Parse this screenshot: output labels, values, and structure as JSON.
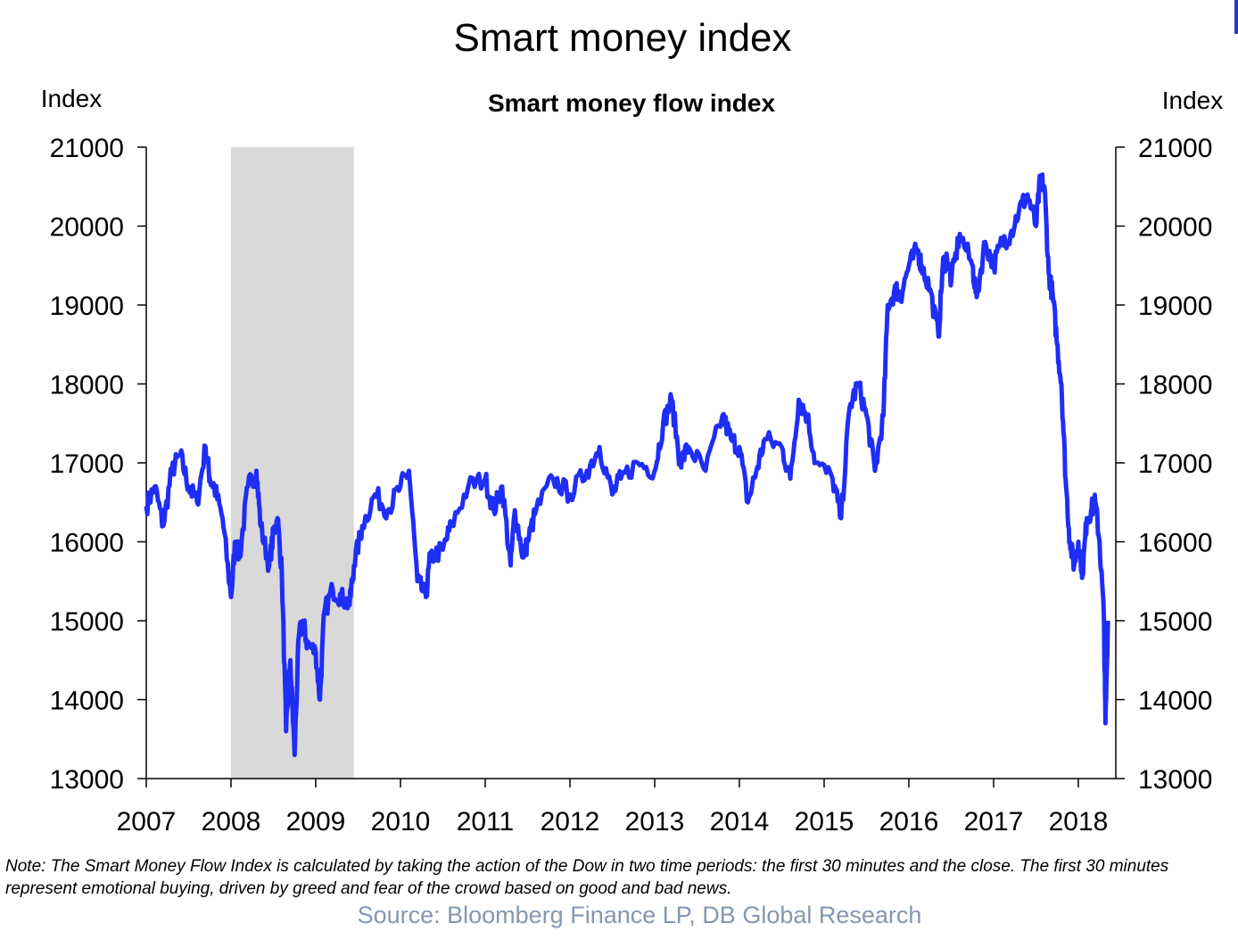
{
  "colors": {
    "line": "#1f2ef5",
    "recession": "#d9d9d9",
    "source": "#8497b0"
  },
  "note": {
    "line1": "Note: The Smart Money Flow Index is calculated by taking the action of the Dow in two time periods: the first 30 minutes and the close. The first 30 minutes",
    "line2": "represent emotional buying, driven by greed and fear of the crowd based on good and bad news."
  },
  "source": "Source: Bloomberg Finance LP, DB Global Research",
  "chart_data": {
    "type": "line",
    "title": "Smart money index",
    "subtitle": "Smart money flow index",
    "ylabel_left": "Index",
    "ylabel_right": "Index",
    "ylim": [
      13000,
      21000
    ],
    "yticks": [
      13000,
      14000,
      15000,
      16000,
      17000,
      18000,
      19000,
      20000,
      21000
    ],
    "xlim": [
      2007,
      2018.4
    ],
    "xticks": [
      "2007",
      "2008",
      "2009",
      "2010",
      "2011",
      "2012",
      "2013",
      "2014",
      "2015",
      "2016",
      "2017",
      "2018"
    ],
    "shaded_region": [
      2008.0,
      2009.45
    ],
    "grid": false,
    "series": [
      {
        "x": [
          2007.0,
          2007.1,
          2007.2,
          2007.3,
          2007.4,
          2007.5,
          2007.6,
          2007.7,
          2007.75,
          2007.8,
          2007.9,
          2008.0,
          2008.05,
          2008.1,
          2008.2,
          2008.3,
          2008.35,
          2008.45,
          2008.5,
          2008.55,
          2008.6,
          2008.65,
          2008.7,
          2008.75,
          2008.8,
          2008.85,
          2008.9,
          2009.0,
          2009.05,
          2009.1,
          2009.2,
          2009.3,
          2009.4,
          2009.45,
          2009.55,
          2009.7,
          2009.85,
          2010.0,
          2010.1,
          2010.2,
          2010.3,
          2010.35,
          2010.5,
          2010.6,
          2010.8,
          2011.0,
          2011.1,
          2011.2,
          2011.3,
          2011.35,
          2011.45,
          2011.5,
          2011.6,
          2011.8,
          2012.0,
          2012.2,
          2012.35,
          2012.5,
          2012.6,
          2012.8,
          2013.0,
          2013.1,
          2013.2,
          2013.3,
          2013.4,
          2013.6,
          2013.8,
          2013.9,
          2014.0,
          2014.1,
          2014.2,
          2014.3,
          2014.5,
          2014.6,
          2014.7,
          2014.8,
          2014.9,
          2015.1,
          2015.2,
          2015.3,
          2015.4,
          2015.5,
          2015.6,
          2015.7,
          2015.75,
          2015.85,
          2015.9,
          2016.0,
          2016.1,
          2016.15,
          2016.25,
          2016.35,
          2016.4,
          2016.45,
          2016.5,
          2016.6,
          2016.75,
          2016.8,
          2016.9,
          2017.0,
          2017.1,
          2017.2,
          2017.3,
          2017.4,
          2017.5,
          2017.55,
          2017.6,
          2017.65,
          2017.7,
          2017.75,
          2017.8,
          2017.85,
          2017.9,
          2017.95,
          2018.0,
          2018.05,
          2018.1,
          2018.15,
          2018.2,
          2018.25,
          2018.3,
          2018.32,
          2018.35
        ],
        "y": [
          16450,
          16700,
          16200,
          16900,
          17100,
          16700,
          16500,
          17200,
          16800,
          16700,
          16300,
          15300,
          16000,
          15800,
          16700,
          16900,
          16200,
          15700,
          16100,
          16300,
          15600,
          13600,
          14500,
          13300,
          14800,
          15000,
          14700,
          14600,
          14000,
          15100,
          15400,
          15300,
          15200,
          15700,
          16200,
          16600,
          16400,
          16700,
          16900,
          15500,
          15300,
          15800,
          15900,
          16200,
          16700,
          16800,
          16400,
          16700,
          15700,
          16400,
          15800,
          16000,
          16400,
          16800,
          16600,
          16900,
          17200,
          16600,
          16800,
          17000,
          16900,
          17500,
          17800,
          17000,
          17200,
          16900,
          17600,
          17300,
          17200,
          16500,
          16900,
          17300,
          17200,
          16800,
          17800,
          17600,
          17000,
          16800,
          16300,
          17700,
          18000,
          17600,
          16900,
          17600,
          19000,
          19200,
          19100,
          19500,
          19700,
          19500,
          19200,
          18600,
          19500,
          19600,
          19300,
          19900,
          19500,
          19100,
          19800,
          19500,
          19800,
          19900,
          20200,
          20400,
          20000,
          20600,
          20500,
          19400,
          19100,
          18500,
          18000,
          16800,
          16000,
          15700,
          16000,
          15600,
          16300,
          16400,
          16500,
          16000,
          15100,
          13700,
          15000
        ]
      }
    ]
  }
}
